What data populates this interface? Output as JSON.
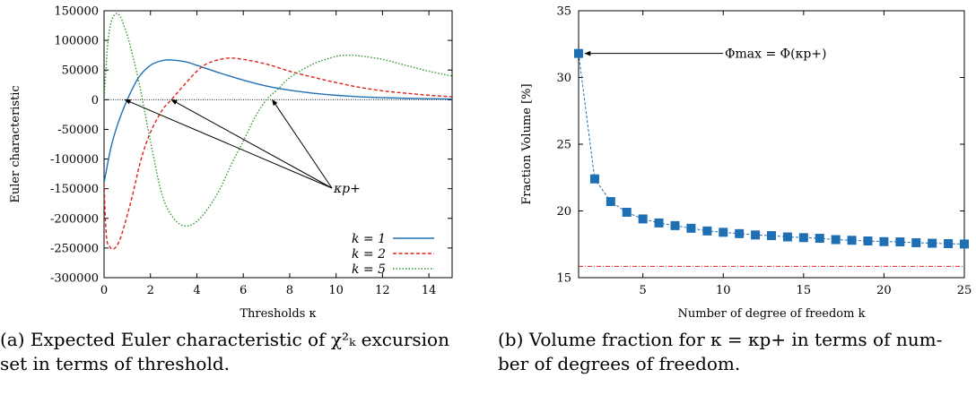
{
  "chart_data": [
    {
      "type": "line",
      "xlabel": "Thresholds κ",
      "ylabel": "Euler characteristic",
      "xlim": [
        0,
        15
      ],
      "ylim": [
        -300000,
        150000
      ],
      "xticks": [
        0,
        2,
        4,
        6,
        8,
        10,
        12,
        14
      ],
      "yticks": [
        -300000,
        -250000,
        -200000,
        -150000,
        -100000,
        -50000,
        0,
        50000,
        100000,
        150000
      ],
      "ytick_labels": [
        "-300000",
        "-250000",
        "-200000",
        "-150000",
        "-100000",
        "-50000",
        "0",
        "50000",
        "100000",
        "150000"
      ],
      "zero_line": true,
      "legend_position": "bottom-right",
      "series": [
        {
          "name": "k = 1",
          "color": "#1f6fb4",
          "dash": "solid",
          "x": [
            0,
            0.3,
            0.6,
            1,
            1.5,
            2,
            2.5,
            2.9,
            3.5,
            4,
            5,
            6,
            7,
            8,
            9,
            10,
            11,
            12,
            13,
            14,
            15
          ],
          "y": [
            -140000,
            -80000,
            -40000,
            0,
            38000,
            58000,
            66000,
            67000,
            64000,
            58000,
            45000,
            33000,
            23000,
            16000,
            11000,
            7500,
            5000,
            3500,
            2400,
            1700,
            1200
          ]
        },
        {
          "name": "k = 2",
          "color": "#e0201b",
          "dash": "dashed",
          "x": [
            0,
            0.1,
            0.25,
            0.4,
            0.6,
            0.8,
            1.2,
            1.6,
            2,
            2.5,
            2.9,
            3.5,
            4,
            4.5,
            5.3,
            6,
            7,
            8,
            9,
            10,
            11,
            12,
            13,
            14,
            15
          ],
          "y": [
            -140000,
            -230000,
            -248000,
            -252000,
            -243000,
            -222000,
            -165000,
            -100000,
            -55000,
            -18000,
            0,
            27000,
            48000,
            62000,
            70000,
            68000,
            60000,
            48000,
            38000,
            29000,
            21000,
            15000,
            11000,
            7500,
            5000
          ]
        },
        {
          "name": "k = 5",
          "color": "#2e9a2e",
          "dash": "dotted",
          "x": [
            0,
            0.15,
            0.3,
            0.5,
            0.7,
            0.9,
            1.1,
            1.5,
            2,
            2.5,
            3,
            3.5,
            4,
            4.5,
            5,
            5.5,
            6,
            6.5,
            7,
            7.5,
            8,
            9,
            10,
            10.5,
            11,
            12,
            13,
            14,
            15
          ],
          "y": [
            0,
            90000,
            130000,
            145000,
            140000,
            120000,
            95000,
            30000,
            -70000,
            -160000,
            -200000,
            -213000,
            -205000,
            -182000,
            -150000,
            -108000,
            -70000,
            -30000,
            0,
            18000,
            37000,
            60000,
            73000,
            75000,
            74000,
            68000,
            58000,
            48000,
            40000
          ]
        }
      ],
      "annotation": {
        "label": "κp+",
        "points_to_x": [
          0.9,
          2.9,
          7.25
        ]
      }
    },
    {
      "type": "scatter",
      "xlabel": "Number of degree of freedom k",
      "ylabel": "Fraction Volume [%]",
      "xlim": [
        1,
        25
      ],
      "ylim": [
        15,
        35
      ],
      "xticks": [
        5,
        10,
        15,
        20,
        25
      ],
      "yticks": [
        15,
        20,
        25,
        30,
        35
      ],
      "series": [
        {
          "color": "#1f6fb4",
          "dash": "dashed",
          "x": [
            1,
            2,
            3,
            4,
            5,
            6,
            7,
            8,
            9,
            10,
            11,
            12,
            13,
            14,
            15,
            16,
            17,
            18,
            19,
            20,
            21,
            22,
            23,
            24,
            25
          ],
          "y": [
            31.8,
            22.4,
            20.7,
            19.9,
            19.4,
            19.1,
            18.9,
            18.7,
            18.5,
            18.4,
            18.3,
            18.2,
            18.15,
            18.05,
            18.0,
            17.95,
            17.85,
            17.8,
            17.75,
            17.7,
            17.68,
            17.62,
            17.58,
            17.55,
            17.52
          ]
        }
      ],
      "reference_line": {
        "y": 15.85,
        "color": "#e0201b"
      },
      "annotation": {
        "label": "Φmax = Φ(κp+)",
        "points_to_x": 1,
        "points_to_y": 31.8
      }
    }
  ],
  "captions": {
    "a": "(a) Expected Euler characteristic of χ²ₖ excursion\nset in terms of threshold.",
    "b": "(b) Volume fraction for κ = κp+ in terms of num-\nber of degrees of freedom."
  }
}
